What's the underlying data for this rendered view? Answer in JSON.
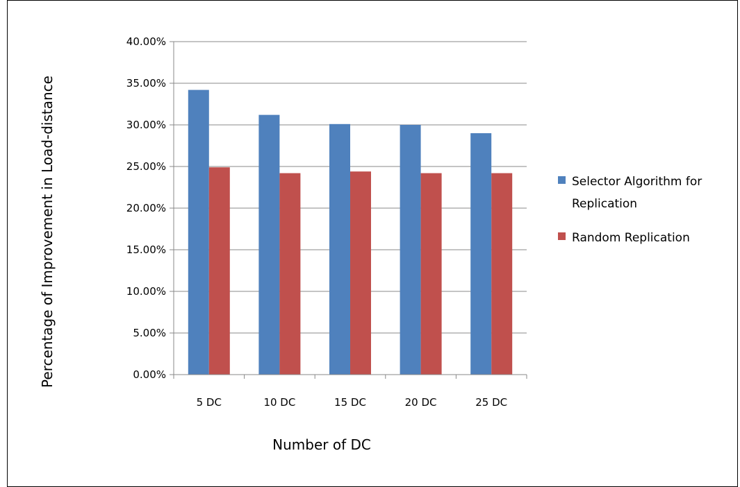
{
  "chart_data": {
    "type": "bar",
    "title": "",
    "xlabel": "Number of DC",
    "ylabel": "Percentage of Improvement in Load-distance",
    "categories": [
      "5 DC",
      "10 DC",
      "15 DC",
      "20 DC",
      "25 DC"
    ],
    "yticks": [
      "0.00%",
      "5.00%",
      "10.00%",
      "15.00%",
      "20.00%",
      "25.00%",
      "30.00%",
      "35.00%",
      "40.00%"
    ],
    "ylim": [
      0,
      40
    ],
    "grid": true,
    "legend_position": "right",
    "series": [
      {
        "name": "Selector Algorithm for Replication",
        "legend_lines": [
          "Selector Algorithm for",
          "Replication"
        ],
        "color": "#4F81BD",
        "values": [
          34.2,
          31.2,
          30.1,
          30.0,
          29.0
        ]
      },
      {
        "name": "Random Replication",
        "legend_lines": [
          "Random Replication"
        ],
        "color": "#C0504D",
        "values": [
          24.9,
          24.2,
          24.4,
          24.2,
          24.2
        ]
      }
    ]
  }
}
